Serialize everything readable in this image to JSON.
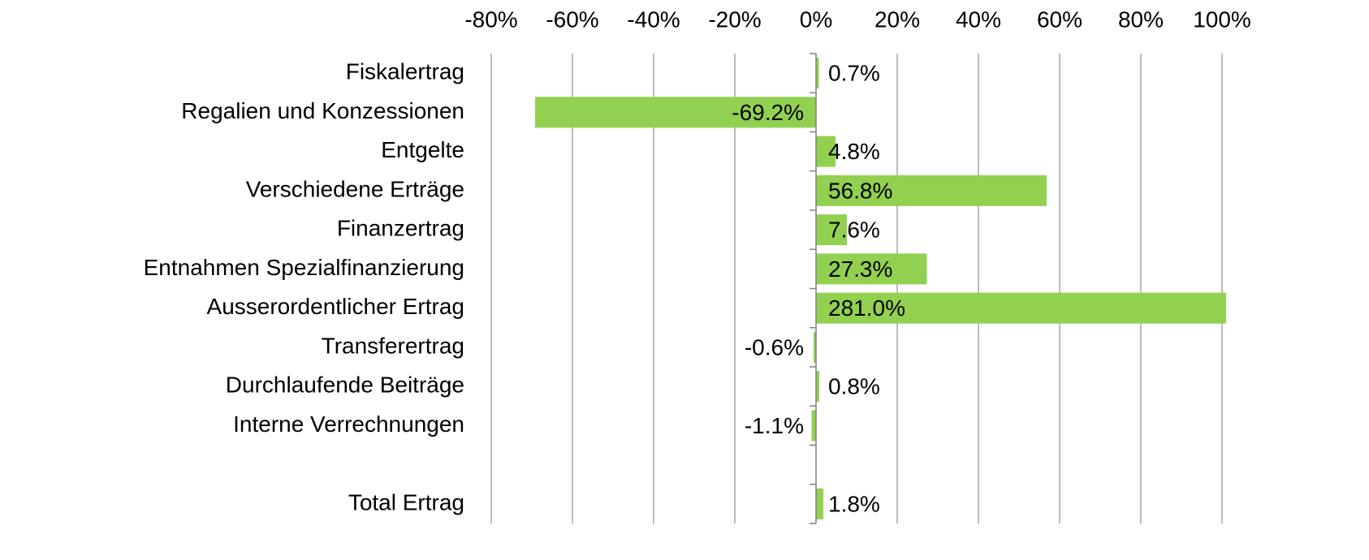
{
  "chart_data": {
    "type": "barh",
    "categories": [
      "Fiskalertrag",
      "Regalien und Konzessionen",
      "Entgelte",
      "Verschiedene Erträge",
      "Finanzertrag",
      "Entnahmen Spezialfinanzierung",
      "Ausserordentlicher Ertrag",
      "Transferertrag",
      "Durchlaufende Beiträge",
      "Interne Verrechnungen",
      null,
      "Total Ertrag"
    ],
    "values": [
      0.7,
      -69.2,
      4.8,
      56.8,
      7.6,
      27.3,
      281.0,
      -0.6,
      0.8,
      -1.1,
      null,
      1.8
    ],
    "value_labels": [
      "0.7%",
      "-69.2%",
      "4.8%",
      "56.8%",
      "7.6%",
      "27.3%",
      "281.0%",
      "-0.6%",
      "0.8%",
      "-1.1%",
      null,
      "1.8%"
    ],
    "color": "#92d050",
    "xlim": [
      -80,
      100
    ],
    "xticks": [
      {
        "value": -80,
        "label": "-80%"
      },
      {
        "value": -60,
        "label": "-60%"
      },
      {
        "value": -40,
        "label": "-40%"
      },
      {
        "value": -20,
        "label": "-20%"
      },
      {
        "value": 0,
        "label": "0%"
      },
      {
        "value": 20,
        "label": "20%"
      },
      {
        "value": 40,
        "label": "40%"
      },
      {
        "value": 60,
        "label": "60%"
      },
      {
        "value": 80,
        "label": "80%"
      },
      {
        "value": 100,
        "label": "100%"
      }
    ],
    "grid": true
  }
}
